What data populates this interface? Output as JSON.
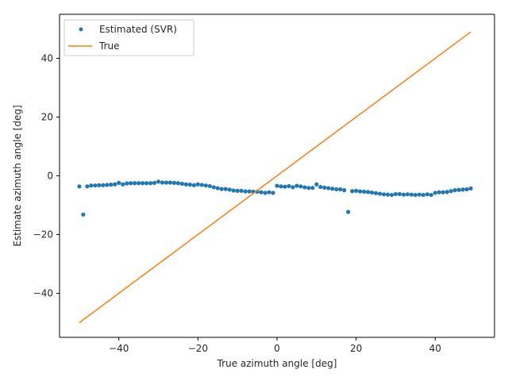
{
  "chart_data": {
    "type": "scatter",
    "title": "",
    "xlabel": "True azimuth angle [deg]",
    "ylabel": "Estimate azimuth angle [deg]",
    "xlim": [
      -55,
      55
    ],
    "ylim": [
      -55,
      55
    ],
    "xticks": [
      -40,
      -20,
      0,
      20,
      40
    ],
    "yticks": [
      -40,
      -20,
      0,
      20,
      40
    ],
    "grid": false,
    "legend_position": "top-left",
    "series": [
      {
        "name": "Estimated (SVR)",
        "kind": "points",
        "color": "#1f77b4",
        "x": [
          -50,
          -49,
          -48,
          -47,
          -46,
          -45,
          -44,
          -43,
          -42,
          -41,
          -40,
          -39,
          -38,
          -37,
          -36,
          -35,
          -34,
          -33,
          -32,
          -31,
          -30,
          -29,
          -28,
          -27,
          -26,
          -25,
          -24,
          -23,
          -22,
          -21,
          -20,
          -19,
          -18,
          -17,
          -16,
          -15,
          -14,
          -13,
          -12,
          -11,
          -10,
          -9,
          -8,
          -7,
          -6,
          -5,
          -4,
          -3,
          -2,
          -1,
          0,
          1,
          2,
          3,
          4,
          5,
          6,
          7,
          8,
          9,
          10,
          11,
          12,
          13,
          14,
          15,
          16,
          17,
          18,
          19,
          20,
          21,
          22,
          23,
          24,
          25,
          26,
          27,
          28,
          29,
          30,
          31,
          32,
          33,
          34,
          35,
          36,
          37,
          38,
          39,
          40,
          41,
          42,
          43,
          44,
          45,
          46,
          47,
          48,
          49
        ],
        "y": [
          -3.6,
          -13.2,
          -3.6,
          -3.3,
          -3.3,
          -3.2,
          -3.2,
          -3.1,
          -3.0,
          -2.9,
          -2.4,
          -2.9,
          -2.6,
          -2.5,
          -2.5,
          -2.5,
          -2.5,
          -2.5,
          -2.5,
          -2.4,
          -2.0,
          -2.3,
          -2.3,
          -2.3,
          -2.4,
          -2.5,
          -2.7,
          -2.9,
          -3.0,
          -3.2,
          -2.9,
          -3.1,
          -3.3,
          -3.5,
          -3.9,
          -4.2,
          -4.5,
          -4.5,
          -4.7,
          -5.0,
          -5.1,
          -5.1,
          -5.3,
          -5.3,
          -5.4,
          -5.4,
          -5.6,
          -5.8,
          -5.6,
          -5.8,
          -3.4,
          -3.6,
          -3.7,
          -3.5,
          -3.9,
          -3.4,
          -3.6,
          -3.9,
          -4.1,
          -4.1,
          -2.9,
          -3.8,
          -4.0,
          -4.2,
          -4.4,
          -4.6,
          -4.6,
          -4.9,
          -12.3,
          -5.2,
          -5.1,
          -5.3,
          -5.4,
          -5.5,
          -5.7,
          -5.9,
          -6.1,
          -6.3,
          -6.4,
          -6.5,
          -6.2,
          -6.2,
          -6.4,
          -6.3,
          -6.4,
          -6.5,
          -6.4,
          -6.5,
          -6.3,
          -6.5,
          -5.8,
          -5.6,
          -5.6,
          -5.5,
          -5.2,
          -4.9,
          -4.8,
          -4.7,
          -4.6,
          -4.3
        ]
      },
      {
        "name": "True",
        "kind": "line",
        "color": "#ff7f0e",
        "x": [
          -50,
          49
        ],
        "y": [
          -50,
          49
        ]
      }
    ]
  }
}
